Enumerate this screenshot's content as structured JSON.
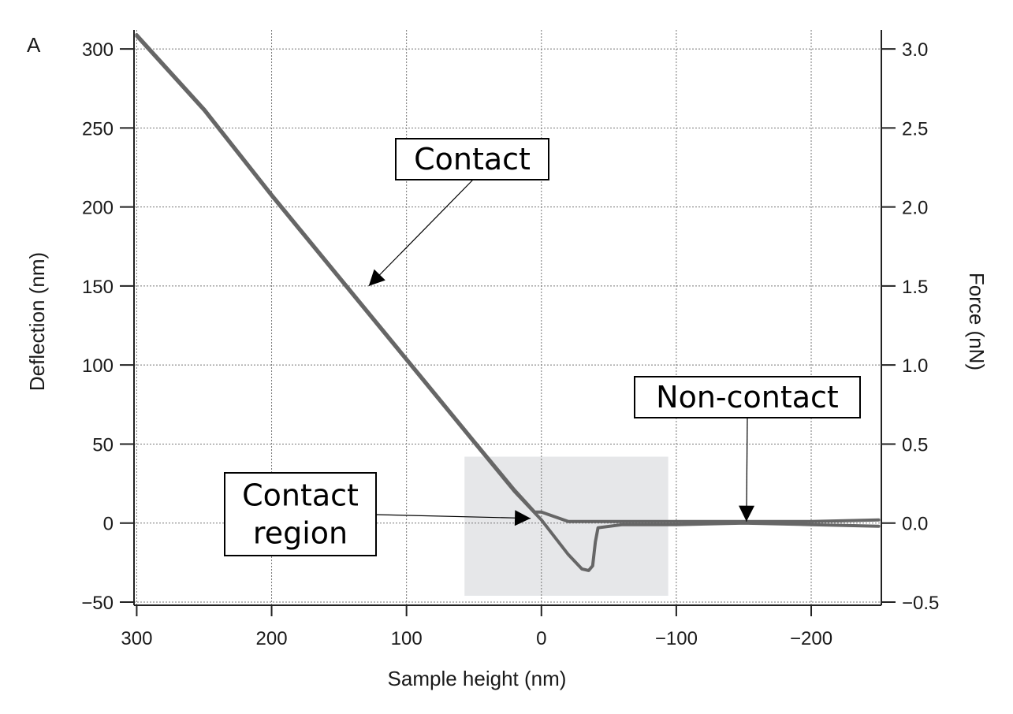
{
  "chart_data": {
    "type": "line",
    "panel_label": "A",
    "xlabel": "Sample height (nm)",
    "ylabel": "Deflection (nm)",
    "y2label": "Force (nN)",
    "xlim": [
      302,
      -252
    ],
    "ylim": [
      -52,
      312
    ],
    "y2lim": [
      -0.52,
      3.12
    ],
    "x_ticks": [
      300,
      200,
      100,
      0,
      -100,
      -200
    ],
    "x_tick_labels": [
      "300",
      "200",
      "100",
      "0",
      "−100",
      "−200"
    ],
    "y_ticks": [
      300,
      250,
      200,
      150,
      100,
      50,
      0,
      -50
    ],
    "y_tick_labels": [
      "300",
      "250",
      "200",
      "150",
      "100",
      "50",
      "0",
      "−50"
    ],
    "y2_ticks": [
      3.0,
      2.5,
      2.0,
      1.5,
      1.0,
      0.5,
      0.0,
      -0.5
    ],
    "y2_tick_labels": [
      "3.0",
      "2.5",
      "2.0",
      "1.5",
      "1.0",
      "0.5",
      "0.0",
      "−0.5"
    ],
    "grid": true,
    "line_color": "#666666",
    "series": [
      {
        "x": [
          300,
          250,
          200,
          150,
          100,
          50,
          20,
          5,
          0,
          -10,
          -20,
          -30,
          -50,
          -100,
          -150,
          -200,
          -250
        ],
        "y": [
          309,
          262,
          208,
          156,
          104,
          52,
          21,
          7,
          7,
          4,
          1,
          1,
          1,
          1,
          1,
          1,
          2
        ]
      },
      {
        "x": [
          300,
          250,
          200,
          150,
          100,
          50,
          20,
          0,
          -10,
          -20,
          -30,
          -35,
          -38,
          -40,
          -42,
          -60,
          -100,
          -150,
          -200,
          -250
        ],
        "y": [
          308,
          261,
          207,
          155,
          103,
          51,
          20,
          2,
          -9,
          -20,
          -29,
          -30,
          -27,
          -12,
          -3,
          -1,
          -1,
          0,
          -1,
          -2
        ]
      }
    ],
    "highlight_region": {
      "x": [
        57,
        -94
      ],
      "y": [
        -46,
        42
      ],
      "color": "#e6e7e9"
    },
    "annotations": [
      {
        "lines": [
          "Contact"
        ],
        "arrow_to": [
          128,
          150
        ]
      },
      {
        "lines": [
          "Non-contact"
        ],
        "arrow_to": [
          -152,
          1
        ]
      },
      {
        "lines": [
          "Contact",
          "region"
        ],
        "arrow_to": [
          8,
          3
        ]
      }
    ]
  }
}
